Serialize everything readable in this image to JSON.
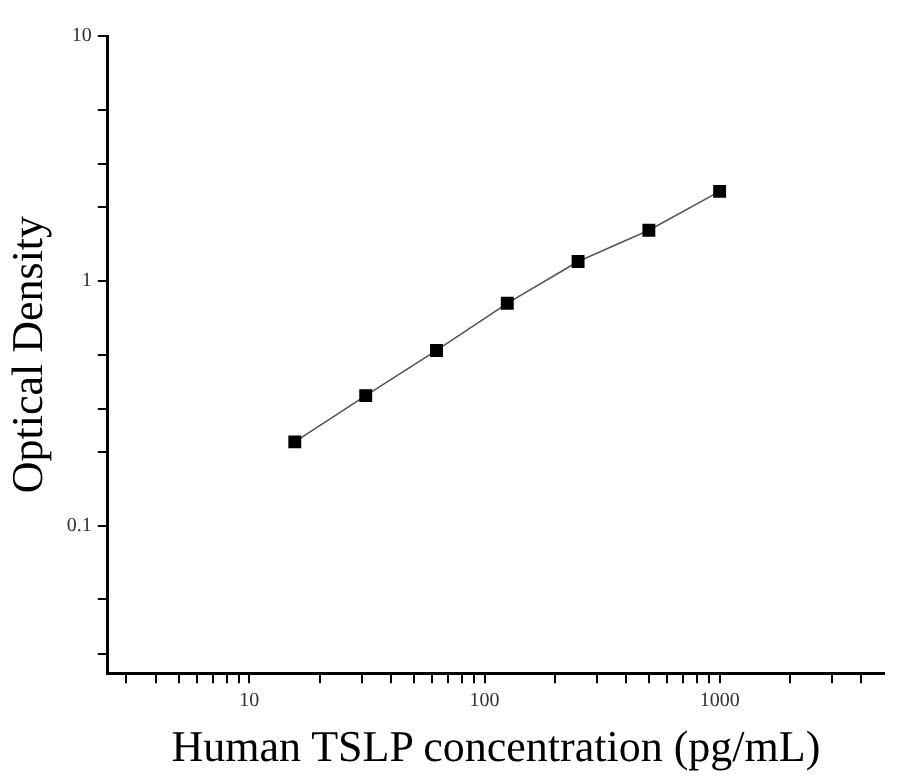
{
  "chart_data": {
    "type": "line",
    "xlabel": "Human TSLP concentration (pg/mL)",
    "ylabel": "Optical Density",
    "log": "xy",
    "grid": false,
    "legend": false,
    "marker": "square",
    "line_style": "solid",
    "x": [
      15.6,
      31.25,
      62.5,
      125,
      250,
      500,
      1000
    ],
    "series": [
      {
        "color": "#000000",
        "values": [
          0.22,
          0.34,
          0.52,
          0.81,
          1.2,
          1.61,
          2.32
        ]
      }
    ],
    "xlim": [
      2.5,
      5000
    ],
    "ylim": [
      0.025,
      10
    ],
    "xticks": [
      {
        "value": 3,
        "label": null
      },
      {
        "value": 4,
        "label": null
      },
      {
        "value": 5,
        "label": null
      },
      {
        "value": 6,
        "label": null
      },
      {
        "value": 7,
        "label": null
      },
      {
        "value": 8,
        "label": null
      },
      {
        "value": 9,
        "label": null
      },
      10,
      {
        "value": 20,
        "label": null
      },
      {
        "value": 30,
        "label": null
      },
      {
        "value": 40,
        "label": null
      },
      {
        "value": 50,
        "label": null
      },
      {
        "value": 60,
        "label": null
      },
      {
        "value": 70,
        "label": null
      },
      {
        "value": 80,
        "label": null
      },
      {
        "value": 90,
        "label": null
      },
      100,
      {
        "value": 200,
        "label": null
      },
      {
        "value": 300,
        "label": null
      },
      {
        "value": 400,
        "label": null
      },
      {
        "value": 500,
        "label": null
      },
      {
        "value": 600,
        "label": null
      },
      {
        "value": 700,
        "label": null
      },
      {
        "value": 800,
        "label": null
      },
      {
        "value": 900,
        "label": null
      },
      1000,
      {
        "value": 2000,
        "label": null
      },
      {
        "value": 3000,
        "label": null
      },
      {
        "value": 4000,
        "label": null
      }
    ],
    "yticks": [
      {
        "value": 0.03,
        "label": null
      },
      {
        "value": 0.05,
        "label": null
      },
      {
        "value": 0.1,
        "label": "0.1"
      },
      {
        "value": 0.2,
        "label": null
      },
      {
        "value": 0.3,
        "label": null
      },
      {
        "value": 0.5,
        "label": null
      },
      {
        "value": 1,
        "label": "1"
      },
      {
        "value": 2,
        "label": null
      },
      {
        "value": 3,
        "label": null
      },
      {
        "value": 5,
        "label": null
      },
      {
        "value": 10,
        "label": "10"
      }
    ]
  }
}
